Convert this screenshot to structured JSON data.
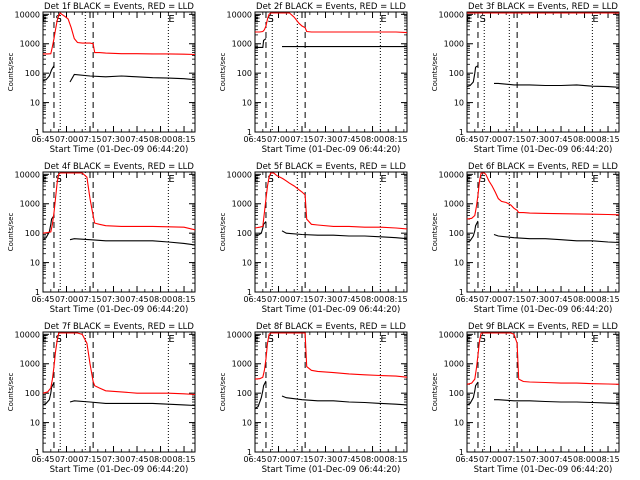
{
  "figure": {
    "x_ticks": [
      "06:45",
      "07:00",
      "07:15",
      "07:30",
      "07:45",
      "08:00",
      "08:15"
    ],
    "y_ticks": [
      "1",
      "10",
      "100",
      "1000",
      "10000"
    ],
    "ylabel": "Counts/sec",
    "xlabel": "Start Time (01-Dec-09 06:44:20)",
    "xlim_minutes_after_0645": [
      0,
      97
    ],
    "ylim": [
      1,
      12000
    ],
    "y_scale": "log",
    "series_colors": {
      "events": "#000000",
      "lld": "#ff0000"
    },
    "marker_letters": [
      "E",
      "S",
      "E"
    ]
  },
  "chart_data": [
    {
      "type": "line",
      "title": "Det 1f BLACK = Events, RED = LLD",
      "markers": {
        "dashed": [
          7,
          32
        ],
        "dotted": [
          11,
          27,
          80
        ]
      },
      "series": [
        {
          "name": "Events",
          "color": "#000000",
          "x": [
            0,
            2,
            4,
            5,
            5.5,
            7,
            7.4,
            16,
            17,
            17.2,
            20,
            30,
            40,
            50,
            60,
            70,
            80,
            90,
            97
          ],
          "y": [
            55,
            60,
            80,
            110,
            130,
            180,
            null,
            null,
            null,
            50,
            90,
            80,
            75,
            80,
            75,
            70,
            68,
            65,
            60
          ]
        },
        {
          "name": "LLD",
          "color": "#ff0000",
          "x": [
            0,
            3,
            5,
            6,
            7,
            8,
            9,
            10,
            11,
            12,
            14,
            16,
            18,
            20,
            22,
            25,
            28,
            30,
            32,
            33,
            36,
            40,
            50,
            60,
            70,
            80,
            90,
            97
          ],
          "y": [
            450,
            450,
            460,
            800,
            1500,
            3000,
            6000,
            9000,
            11000,
            10000,
            8500,
            7000,
            3500,
            1500,
            1100,
            1050,
            1050,
            1050,
            1000,
            500,
            500,
            480,
            460,
            460,
            450,
            450,
            440,
            430
          ]
        }
      ]
    },
    {
      "type": "line",
      "title": "Det 2f BLACK = Events, RED = LLD",
      "markers": {
        "dashed": [
          7,
          32
        ],
        "dotted": [
          11,
          27,
          80
        ]
      },
      "series": [
        {
          "name": "Events",
          "color": "#000000",
          "x": [
            0,
            2,
            4,
            5,
            5.5,
            7,
            7.4,
            16,
            17,
            17.2,
            20,
            30,
            40,
            50,
            60,
            70,
            80,
            90,
            97
          ],
          "y": [
            750,
            750,
            750,
            750,
            1300,
            1500,
            null,
            null,
            null,
            800,
            800,
            800,
            800,
            800,
            800,
            800,
            800,
            800,
            800
          ]
        },
        {
          "name": "LLD",
          "color": "#ff0000",
          "x": [
            0,
            3,
            5,
            6,
            7,
            8,
            9,
            10,
            11,
            12,
            14,
            16,
            18,
            20,
            22,
            25,
            28,
            30,
            32,
            33,
            36,
            40,
            50,
            60,
            70,
            80,
            90,
            97
          ],
          "y": [
            2500,
            2500,
            2600,
            3000,
            4000,
            7000,
            10000,
            12000,
            12000,
            12000,
            12000,
            12000,
            12000,
            12000,
            12000,
            8000,
            5000,
            4000,
            3500,
            2600,
            2500,
            2500,
            2500,
            2500,
            2500,
            2500,
            2500,
            2400
          ]
        }
      ]
    },
    {
      "type": "line",
      "title": "Det 3f BLACK = Events, RED = LLD",
      "markers": {
        "dashed": [
          7,
          32
        ],
        "dotted": [
          11,
          27,
          80
        ]
      },
      "series": [
        {
          "name": "Events",
          "color": "#000000",
          "x": [
            0,
            2,
            4,
            5,
            5.5,
            7,
            7.4,
            16,
            17,
            17.2,
            20,
            30,
            40,
            50,
            60,
            70,
            80,
            90,
            97
          ],
          "y": [
            35,
            38,
            50,
            100,
            160,
            180,
            null,
            null,
            null,
            45,
            45,
            40,
            40,
            38,
            38,
            40,
            36,
            35,
            33
          ]
        },
        {
          "name": "LLD",
          "color": "#ff0000",
          "x": [
            0,
            3,
            5,
            6,
            7,
            8,
            9,
            10,
            11,
            12,
            14,
            16,
            18,
            20,
            22,
            25,
            28,
            30,
            32,
            33,
            36,
            40,
            50,
            60,
            70,
            80,
            90,
            97
          ],
          "y": [
            12000,
            12000,
            12000,
            12000,
            12000,
            12000,
            12000,
            12000,
            12000,
            12000,
            12000,
            12000,
            12000,
            12000,
            12000,
            12000,
            12000,
            12000,
            12000,
            12000,
            12000,
            12000,
            12000,
            12000,
            12000,
            12000,
            12000,
            12000
          ]
        }
      ]
    },
    {
      "type": "line",
      "title": "Det 4f BLACK = Events, RED = LLD",
      "markers": {
        "dashed": [
          7,
          32
        ],
        "dotted": [
          11,
          27,
          80
        ]
      },
      "series": [
        {
          "name": "Events",
          "color": "#000000",
          "x": [
            0,
            2,
            4,
            5,
            5.5,
            7,
            7.4,
            16,
            17,
            17.2,
            20,
            30,
            40,
            50,
            60,
            70,
            80,
            90,
            97
          ],
          "y": [
            60,
            70,
            110,
            200,
            300,
            400,
            null,
            null,
            null,
            60,
            65,
            60,
            55,
            55,
            55,
            55,
            50,
            45,
            40
          ]
        },
        {
          "name": "LLD",
          "color": "#ff0000",
          "x": [
            0,
            3,
            5,
            6,
            7,
            8,
            9,
            10,
            11,
            12,
            14,
            16,
            18,
            20,
            22,
            25,
            28,
            30,
            32,
            33,
            36,
            40,
            50,
            60,
            70,
            80,
            90,
            97
          ],
          "y": [
            100,
            105,
            110,
            200,
            500,
            1500,
            5000,
            10000,
            12000,
            12000,
            12000,
            12000,
            12000,
            12000,
            12000,
            12000,
            8000,
            1500,
            400,
            220,
            200,
            180,
            170,
            170,
            170,
            165,
            160,
            130
          ]
        }
      ]
    },
    {
      "type": "line",
      "title": "Det 5f BLACK = Events, RED = LLD",
      "markers": {
        "dashed": [
          7,
          32
        ],
        "dotted": [
          11,
          27,
          80
        ]
      },
      "series": [
        {
          "name": "Events",
          "color": "#000000",
          "x": [
            0,
            2,
            4,
            5,
            5.5,
            7,
            7.4,
            16,
            17,
            17.2,
            20,
            30,
            40,
            50,
            60,
            70,
            80,
            90,
            97
          ],
          "y": [
            80,
            85,
            100,
            150,
            200,
            250,
            null,
            null,
            null,
            120,
            100,
            90,
            85,
            85,
            80,
            80,
            75,
            70,
            65
          ]
        },
        {
          "name": "LLD",
          "color": "#ff0000",
          "x": [
            0,
            3,
            5,
            6,
            7,
            8,
            9,
            10,
            11,
            12,
            14,
            16,
            18,
            20,
            22,
            25,
            28,
            30,
            32,
            33,
            36,
            40,
            50,
            60,
            70,
            80,
            90,
            97
          ],
          "y": [
            150,
            160,
            170,
            500,
            1500,
            4000,
            8000,
            12000,
            12000,
            11000,
            9000,
            8000,
            7000,
            6000,
            5000,
            4000,
            3000,
            2500,
            2000,
            300,
            200,
            190,
            170,
            170,
            160,
            160,
            150,
            140
          ]
        }
      ]
    },
    {
      "type": "line",
      "title": "Det 6f BLACK = Events, RED = LLD",
      "markers": {
        "dashed": [
          7,
          32
        ],
        "dotted": [
          11,
          27,
          80
        ]
      },
      "series": [
        {
          "name": "Events",
          "color": "#000000",
          "x": [
            0,
            2,
            4,
            5,
            5.5,
            7,
            7.4,
            16,
            17,
            17.2,
            20,
            30,
            40,
            50,
            60,
            70,
            80,
            90,
            97
          ],
          "y": [
            50,
            55,
            80,
            120,
            180,
            260,
            null,
            null,
            null,
            90,
            80,
            70,
            65,
            65,
            60,
            55,
            55,
            50,
            48
          ]
        },
        {
          "name": "LLD",
          "color": "#ff0000",
          "x": [
            0,
            3,
            5,
            6,
            7,
            8,
            9,
            10,
            11,
            12,
            14,
            16,
            18,
            20,
            22,
            25,
            28,
            30,
            32,
            33,
            36,
            40,
            50,
            60,
            70,
            80,
            90,
            97
          ],
          "y": [
            300,
            320,
            400,
            800,
            2000,
            6000,
            11000,
            12000,
            12000,
            10000,
            6000,
            4000,
            2500,
            1500,
            1200,
            1100,
            900,
            700,
            600,
            500,
            500,
            480,
            470,
            460,
            450,
            440,
            430,
            420
          ]
        }
      ]
    },
    {
      "type": "line",
      "title": "Det 7f BLACK = Events, RED = LLD",
      "markers": {
        "dashed": [
          7,
          32
        ],
        "dotted": [
          11,
          27,
          80
        ]
      },
      "series": [
        {
          "name": "Events",
          "color": "#000000",
          "x": [
            0,
            2,
            4,
            5,
            5.5,
            7,
            7.4,
            16,
            17,
            17.2,
            20,
            30,
            40,
            50,
            60,
            70,
            80,
            90,
            97
          ],
          "y": [
            40,
            45,
            60,
            100,
            160,
            230,
            null,
            null,
            null,
            50,
            55,
            50,
            45,
            45,
            45,
            45,
            42,
            40,
            38
          ]
        },
        {
          "name": "LLD",
          "color": "#ff0000",
          "x": [
            0,
            3,
            5,
            6,
            7,
            8,
            9,
            10,
            11,
            12,
            14,
            16,
            18,
            20,
            22,
            25,
            28,
            30,
            32,
            33,
            36,
            40,
            50,
            60,
            70,
            80,
            90,
            97
          ],
          "y": [
            100,
            110,
            150,
            300,
            800,
            2500,
            6000,
            11000,
            12000,
            12000,
            12000,
            12000,
            12000,
            12000,
            12000,
            10000,
            5000,
            1000,
            250,
            180,
            150,
            120,
            110,
            100,
            100,
            100,
            95,
            90
          ]
        }
      ]
    },
    {
      "type": "line",
      "title": "Det 8f BLACK = Events, RED = LLD",
      "markers": {
        "dashed": [
          7,
          32
        ],
        "dotted": [
          11,
          27,
          80
        ]
      },
      "series": [
        {
          "name": "Events",
          "color": "#000000",
          "x": [
            0,
            2,
            4,
            5,
            5.5,
            7,
            7.4,
            16,
            17,
            17.2,
            20,
            30,
            40,
            50,
            60,
            70,
            80,
            90,
            97
          ],
          "y": [
            30,
            35,
            70,
            120,
            180,
            260,
            null,
            null,
            null,
            80,
            70,
            60,
            55,
            55,
            50,
            48,
            45,
            42,
            40
          ]
        },
        {
          "name": "LLD",
          "color": "#ff0000",
          "x": [
            0,
            3,
            5,
            6,
            7,
            8,
            9,
            10,
            11,
            12,
            14,
            16,
            18,
            20,
            22,
            25,
            28,
            30,
            32,
            33,
            36,
            40,
            50,
            60,
            70,
            80,
            90,
            97
          ],
          "y": [
            300,
            310,
            350,
            600,
            1500,
            5000,
            10000,
            12000,
            12000,
            12000,
            12000,
            12000,
            12000,
            12000,
            12000,
            12000,
            12000,
            12000,
            12000,
            800,
            600,
            550,
            500,
            450,
            420,
            400,
            380,
            350
          ]
        }
      ]
    },
    {
      "type": "line",
      "title": "Det 9f BLACK = Events, RED = LLD",
      "markers": {
        "dashed": [
          7,
          32
        ],
        "dotted": [
          11,
          27,
          80
        ]
      },
      "series": [
        {
          "name": "Events",
          "color": "#000000",
          "x": [
            0,
            2,
            4,
            5,
            5.5,
            7,
            7.4,
            16,
            17,
            17.2,
            20,
            30,
            40,
            50,
            60,
            70,
            80,
            90,
            97
          ],
          "y": [
            40,
            45,
            70,
            120,
            180,
            240,
            null,
            null,
            null,
            60,
            60,
            55,
            55,
            52,
            50,
            50,
            48,
            46,
            45
          ]
        },
        {
          "name": "LLD",
          "color": "#ff0000",
          "x": [
            0,
            3,
            5,
            6,
            7,
            8,
            9,
            10,
            11,
            12,
            14,
            16,
            18,
            20,
            22,
            25,
            28,
            30,
            32,
            33,
            36,
            40,
            50,
            60,
            70,
            80,
            90,
            97
          ],
          "y": [
            200,
            220,
            300,
            700,
            2000,
            6000,
            11000,
            12000,
            12000,
            12000,
            12000,
            12000,
            12000,
            12000,
            12000,
            12000,
            12000,
            10000,
            5000,
            300,
            250,
            240,
            230,
            220,
            220,
            210,
            205,
            200
          ]
        }
      ]
    }
  ]
}
